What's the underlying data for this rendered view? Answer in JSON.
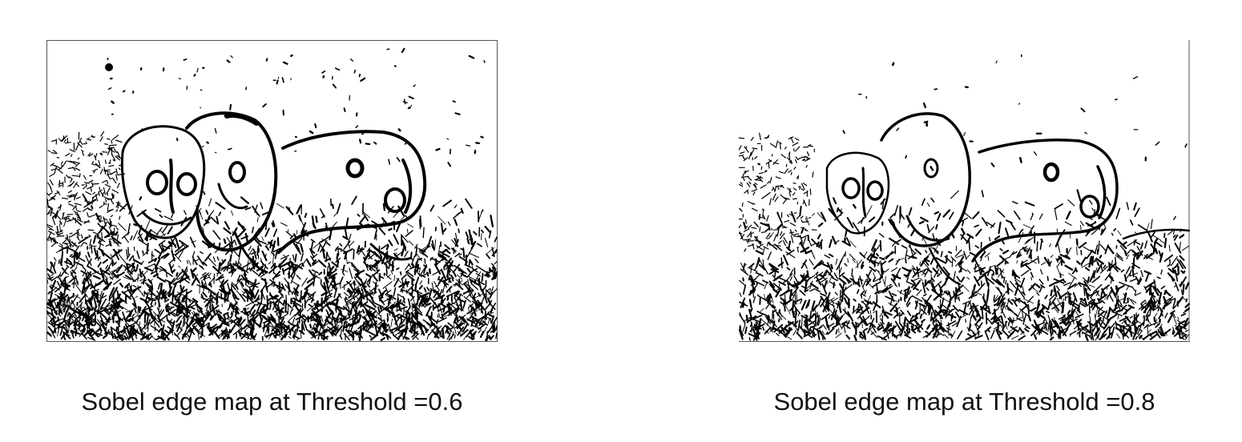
{
  "figure": {
    "panels": [
      {
        "id": "left",
        "caption": "Sobel edge map at Threshold =0.6",
        "density": 1.0,
        "border": "full"
      },
      {
        "id": "right",
        "caption": "Sobel edge map at Threshold =0.8",
        "density": 0.7,
        "border": "partial"
      }
    ],
    "colors": {
      "edge": "#000000",
      "background": "#ffffff",
      "border": "#555555"
    }
  }
}
